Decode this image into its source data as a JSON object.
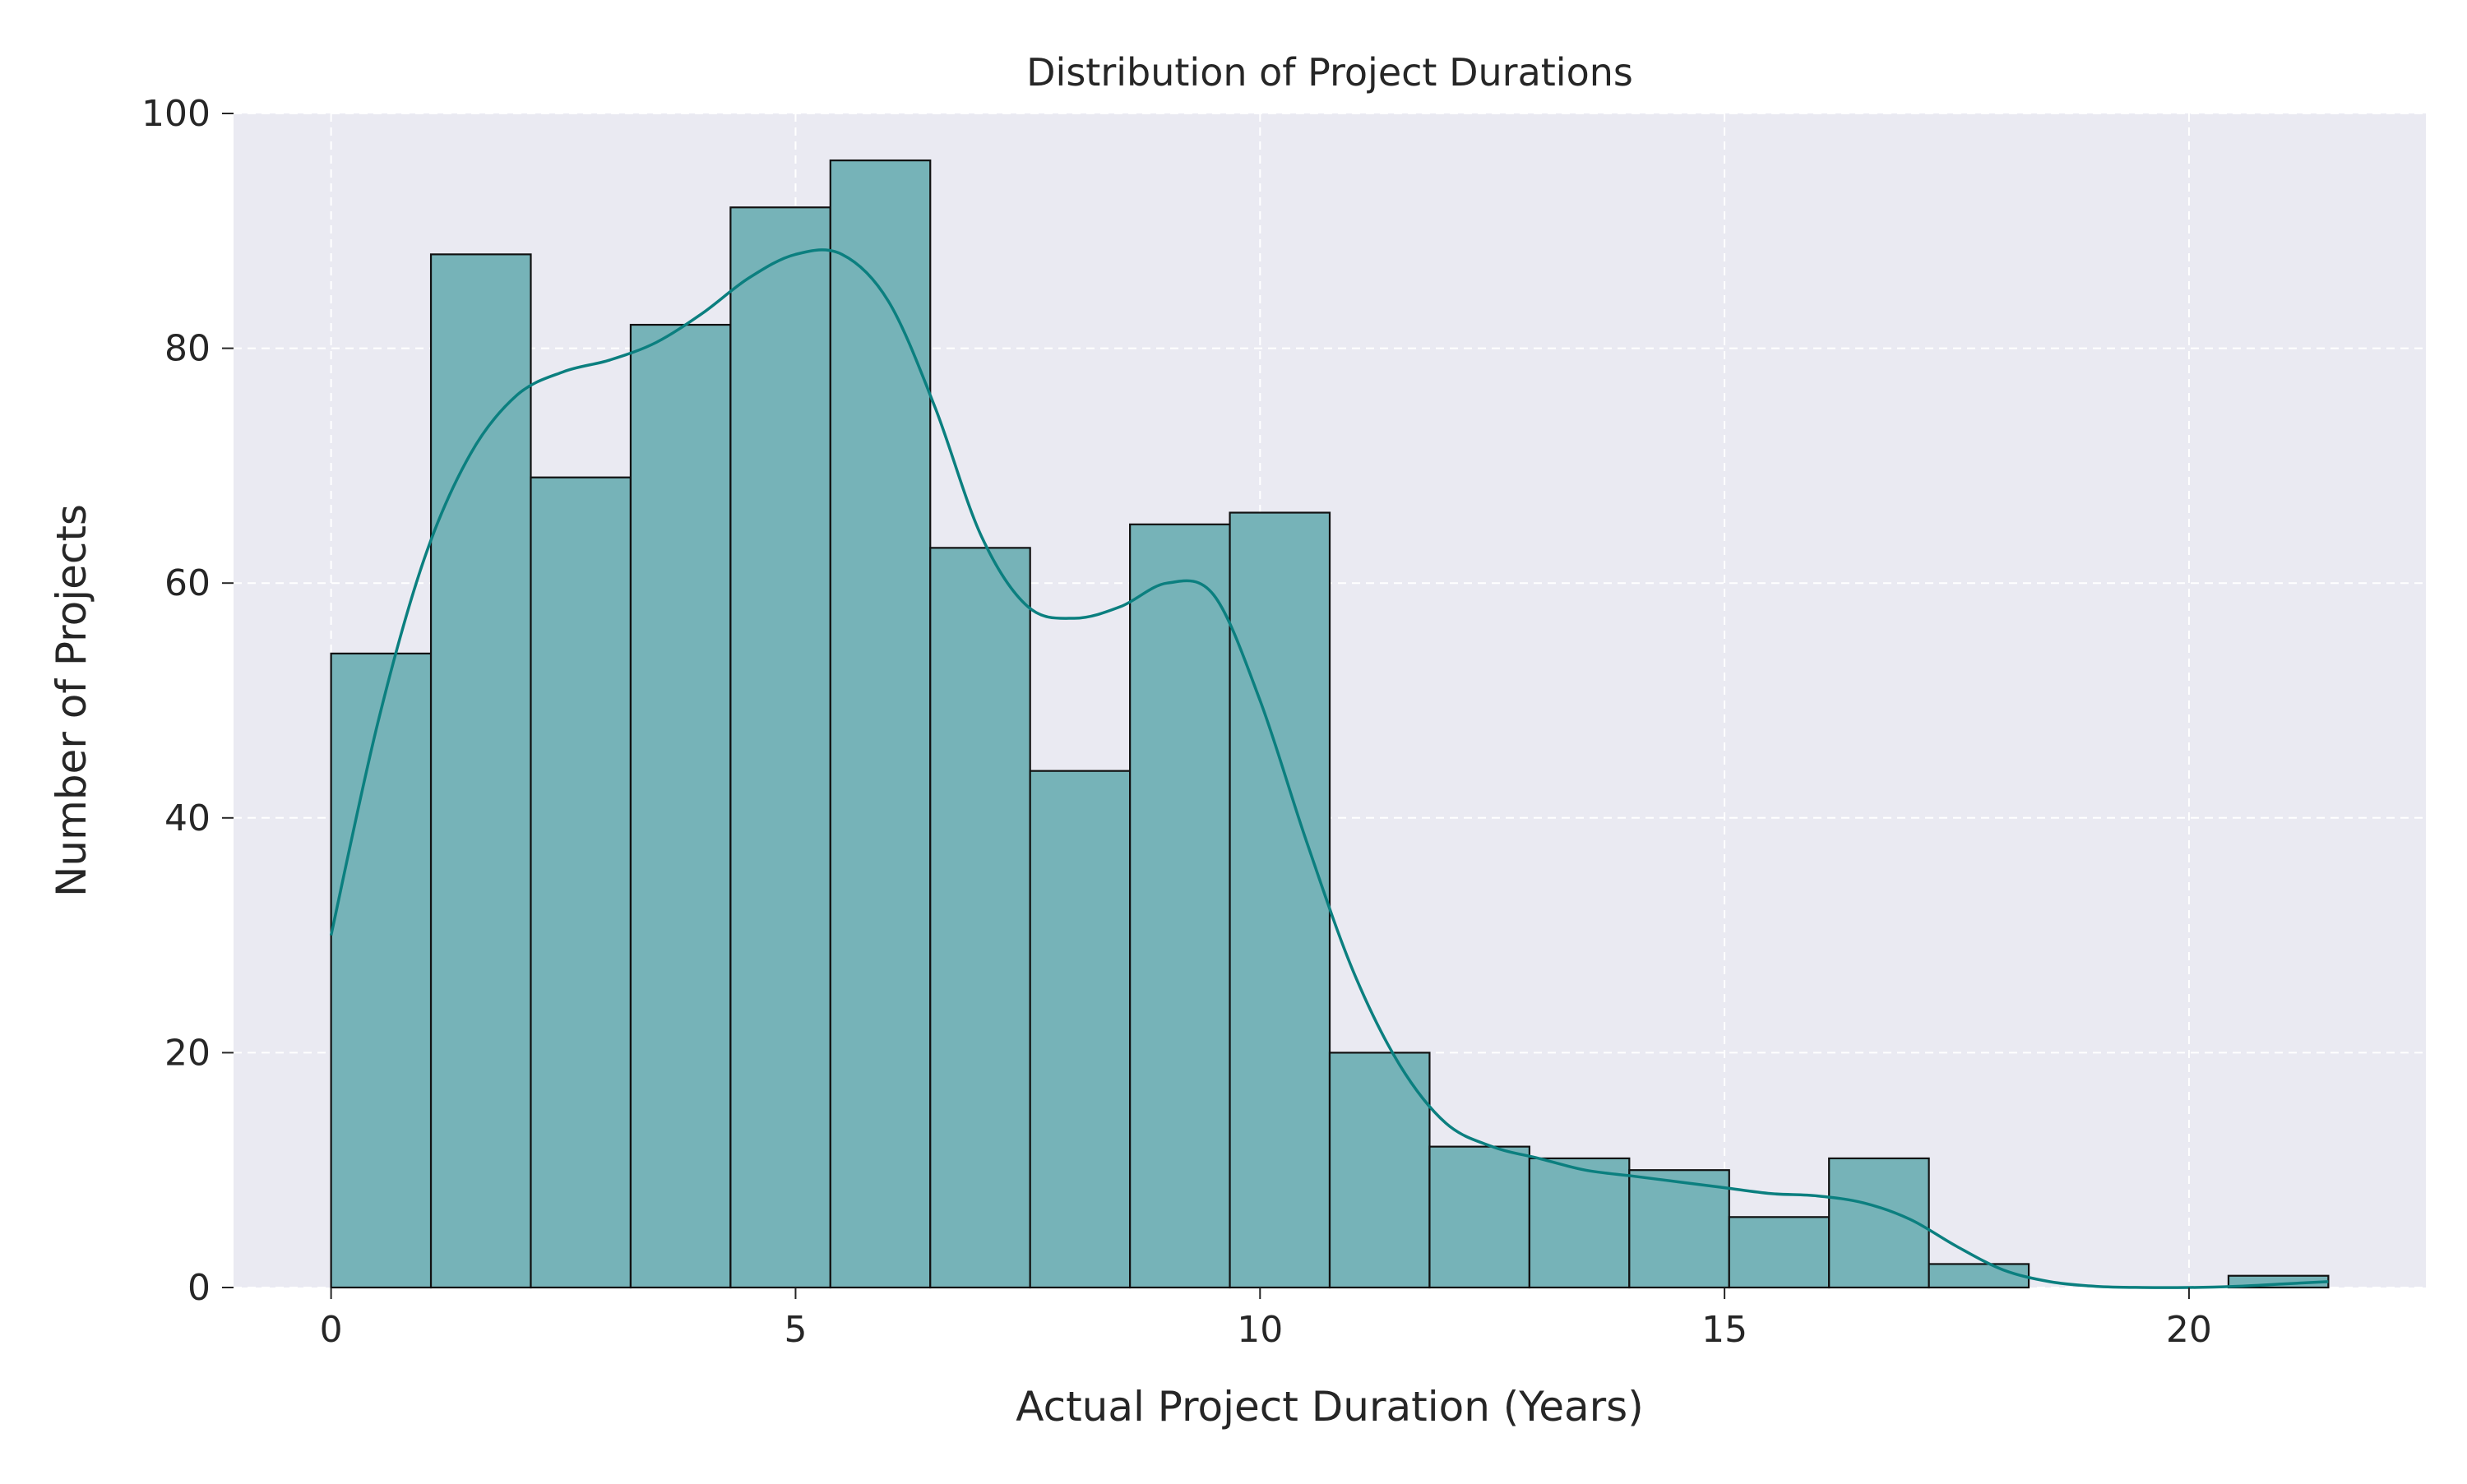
{
  "chart_data": {
    "type": "bar",
    "subtype": "histogram-with-kde",
    "title": "Distribution of Project Durations",
    "xlabel": "Actual Project Duration (Years)",
    "ylabel": "Number of Projects",
    "xlim": [
      -1.05,
      22.55
    ],
    "ylim": [
      0,
      100
    ],
    "xticks": [
      0,
      5,
      10,
      15,
      20
    ],
    "yticks": [
      0,
      20,
      40,
      60,
      80,
      100
    ],
    "grid": true,
    "legend": "none",
    "bin_start": 0,
    "bin_width": 1.075,
    "values": [
      54,
      88,
      69,
      82,
      92,
      96,
      63,
      44,
      65,
      66,
      20,
      12,
      11,
      10,
      6,
      11,
      2,
      0,
      0,
      1
    ],
    "kde": {
      "x": [
        0,
        0.5,
        1,
        1.5,
        2,
        2.5,
        3,
        3.5,
        4,
        4.5,
        5,
        5.5,
        6,
        6.5,
        7,
        7.5,
        8,
        8.5,
        9,
        9.5,
        10,
        10.5,
        11,
        11.5,
        12,
        12.5,
        13,
        13.5,
        14,
        14.5,
        15,
        15.5,
        16,
        16.5,
        17,
        17.5,
        18,
        18.5,
        19,
        19.5,
        20,
        20.5,
        21,
        21.5
      ],
      "y": [
        30,
        48,
        62,
        71,
        76,
        78,
        79,
        80.5,
        83,
        86,
        88,
        88,
        84,
        75,
        64,
        58,
        57,
        58,
        60,
        59,
        50,
        38,
        27,
        19,
        14,
        12,
        11,
        10,
        9.5,
        9,
        8.5,
        8,
        7.8,
        7.2,
        5.8,
        3.5,
        1.5,
        0.5,
        0.1,
        0,
        0,
        0.1,
        0.3,
        0.5
      ]
    },
    "colors": {
      "bar_fill": "#76b3b8",
      "bar_edge": "#111111",
      "kde_line": "#0b7f7f",
      "plot_background": "#eaeaf2",
      "grid": "#ffffff"
    }
  }
}
